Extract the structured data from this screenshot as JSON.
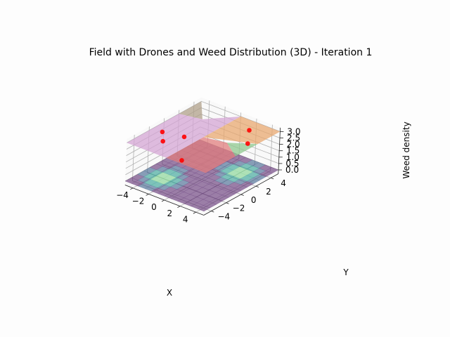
{
  "chart_data": {
    "type": "surface3d",
    "title": "Field with Drones and Weed Distribution (3D) - Iteration 1",
    "xlabel": "X",
    "ylabel": "Y",
    "zlabel": "Weed density",
    "xlim": [
      -5,
      5
    ],
    "ylim": [
      -5,
      5
    ],
    "zlim": [
      0,
      3
    ],
    "x_ticks": [
      -4,
      -2,
      0,
      2,
      4
    ],
    "y_ticks": [
      -4,
      -2,
      0,
      2,
      4
    ],
    "z_ticks": [
      0.0,
      0.5,
      1.0,
      1.5,
      2.0,
      2.5,
      3.0
    ],
    "x_tick_labels": [
      "−4",
      "−2",
      "0",
      "2",
      "4"
    ],
    "y_tick_labels": [
      "−4",
      "−2",
      "0",
      "2",
      "4"
    ],
    "z_tick_labels": [
      "0.0",
      "0.5",
      "1.0",
      "1.5",
      "2.0",
      "2.5",
      "3.0"
    ],
    "weed_distribution": {
      "plane_z": 0,
      "hotspots": [
        {
          "x": -2.5,
          "y": -2.5,
          "peak": 1.0
        },
        {
          "x": 2.5,
          "y": 2.5,
          "peak": 1.0
        }
      ],
      "colormap": [
        "#5b2c6f",
        "#3b5f8a",
        "#2a9c8f",
        "#7bd08a",
        "#f4e35a"
      ]
    },
    "region_plane": {
      "z": 3,
      "regions": [
        {
          "color": "#b0a08a",
          "corners": [
            [
              -5,
              5
            ],
            [
              -5,
              2
            ],
            [
              -2.5,
              2.5
            ]
          ]
        },
        {
          "color": "#d4a5d4",
          "corners": [
            [
              -5,
              2
            ],
            [
              -2.5,
              2.5
            ],
            [
              0,
              5
            ],
            [
              0,
              -5
            ],
            [
              -5,
              -5
            ]
          ]
        },
        {
          "color": "#e8a870",
          "corners": [
            [
              0,
              5
            ],
            [
              5,
              5
            ],
            [
              5,
              2
            ],
            [
              0,
              0
            ]
          ]
        },
        {
          "color": "#8fc88f",
          "corners": [
            [
              5,
              2
            ],
            [
              5,
              -1
            ],
            [
              2.5,
              0.5
            ]
          ]
        },
        {
          "color": "#e07e7e",
          "corners": [
            [
              0,
              0
            ],
            [
              2.5,
              0.5
            ],
            [
              5,
              -1
            ],
            [
              5,
              -5
            ],
            [
              0,
              -5
            ]
          ]
        }
      ]
    },
    "drones": [
      {
        "x": -3.8,
        "y": -1.5,
        "z": 3
      },
      {
        "x": -2.5,
        "y": -2.8,
        "z": 3
      },
      {
        "x": -1.5,
        "y": -1.0,
        "z": 3
      },
      {
        "x": 1.5,
        "y": -4.5,
        "z": 3
      },
      {
        "x": 4.2,
        "y": 1.5,
        "z": 3
      },
      {
        "x": 2.5,
        "y": 3.5,
        "z": 3
      }
    ],
    "drone_color": "#ff0000",
    "grid": true
  }
}
